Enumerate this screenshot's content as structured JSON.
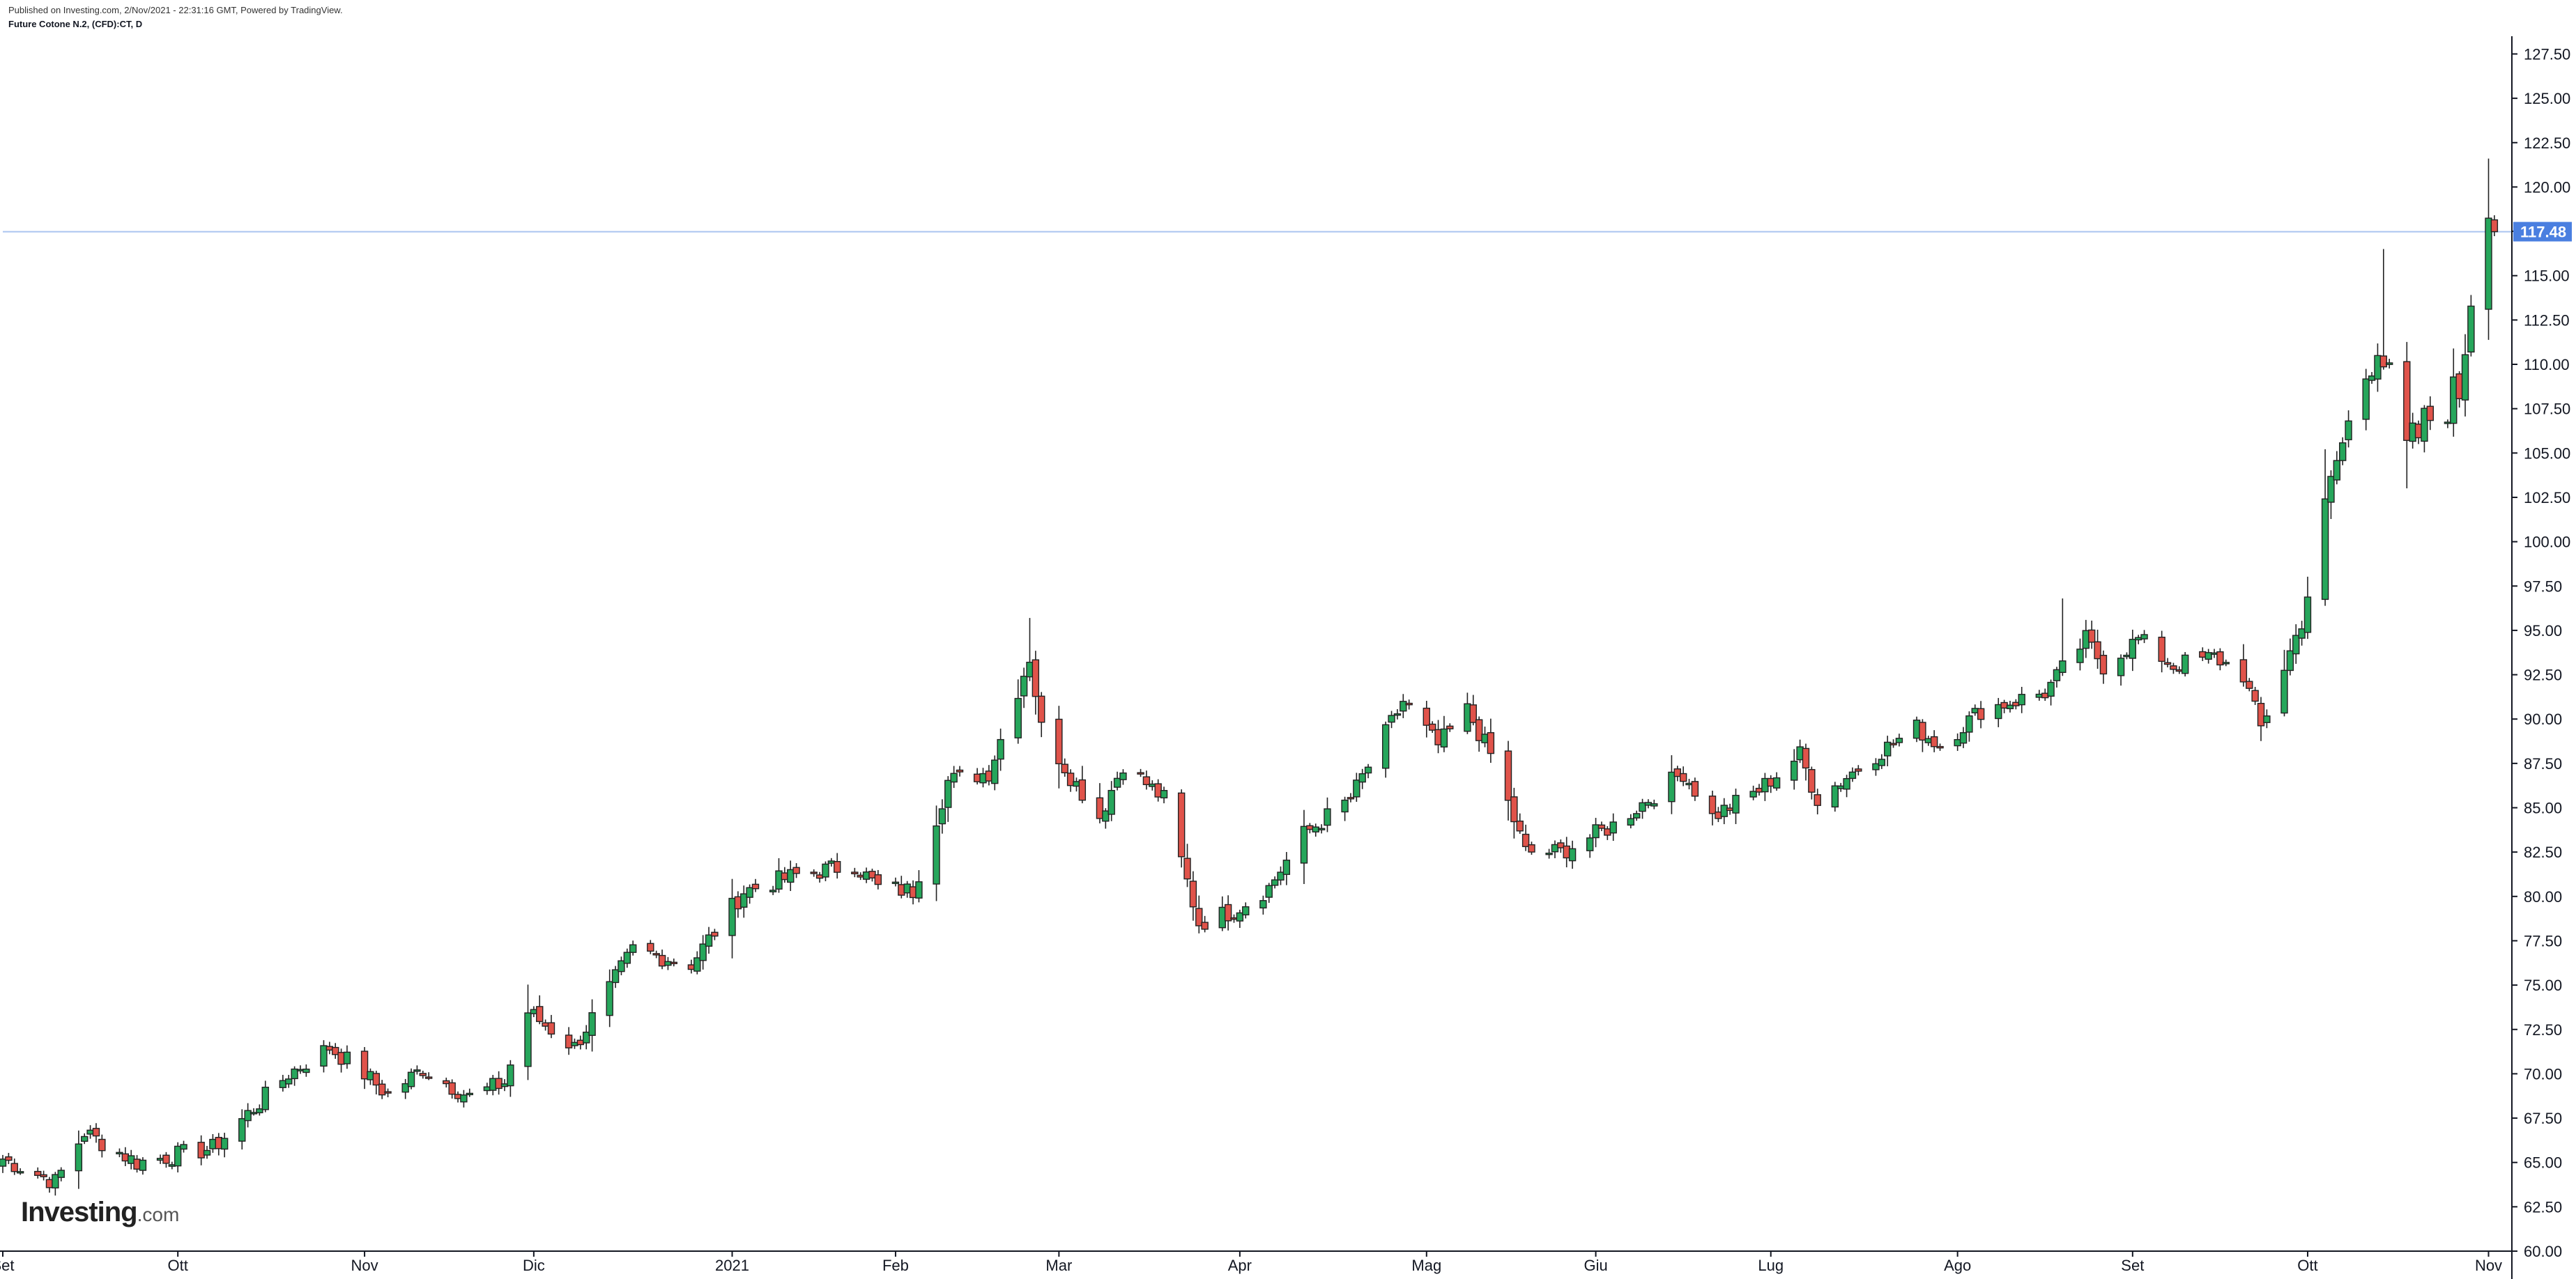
{
  "header": {
    "published": "Published on Investing.com, 2/Nov/2021 - 22:31:16 GMT, Powered by TradingView.",
    "symbol": "Future Cotone N.2, (CFD):CT, D"
  },
  "logo": {
    "brand": "Investing",
    "suffix": ".com"
  },
  "colors": {
    "up": "#26a65b",
    "down": "#e0534a",
    "wick": "#222222",
    "axis": "#131722",
    "price_line": "#aac4f0",
    "price_tag": "#4a7fe0"
  },
  "chart_data": {
    "type": "candlestick",
    "title": "",
    "xlabel": "",
    "ylabel": "",
    "ylim": [
      60.0,
      128.5
    ],
    "last_price": 117.48,
    "last_price_label": "117.48",
    "y_ticks": [
      60.0,
      62.5,
      65.0,
      67.5,
      70.0,
      72.5,
      75.0,
      77.5,
      80.0,
      82.5,
      85.0,
      87.5,
      90.0,
      92.5,
      95.0,
      97.5,
      100.0,
      102.5,
      105.0,
      107.5,
      110.0,
      112.5,
      115.0,
      117.5,
      120.0,
      122.5,
      125.0,
      127.5
    ],
    "y_tick_labels": [
      "60.00",
      "62.50",
      "65.00",
      "67.50",
      "70.00",
      "72.50",
      "75.00",
      "77.50",
      "80.00",
      "82.50",
      "85.00",
      "87.50",
      "90.00",
      "92.50",
      "95.00",
      "97.50",
      "100.00",
      "102.50",
      "105.00",
      "107.50",
      "110.00",
      "112.50",
      "115.00",
      "117.50",
      "120.00",
      "122.50",
      "125.00",
      "127.50"
    ],
    "x_domain": [
      "2020-09-01",
      "2021-11-05"
    ],
    "x_ticks": [
      {
        "date": "2020-09-01",
        "label": "Set"
      },
      {
        "date": "2020-10-01",
        "label": "Ott"
      },
      {
        "date": "2020-11-02",
        "label": "Nov"
      },
      {
        "date": "2020-12-01",
        "label": "Dic"
      },
      {
        "date": "2021-01-04",
        "label": "2021"
      },
      {
        "date": "2021-02-01",
        "label": "Feb"
      },
      {
        "date": "2021-03-01",
        "label": "Mar"
      },
      {
        "date": "2021-04-01",
        "label": "Apr"
      },
      {
        "date": "2021-05-03",
        "label": "Mag"
      },
      {
        "date": "2021-06-01",
        "label": "Giu"
      },
      {
        "date": "2021-07-01",
        "label": "Lug"
      },
      {
        "date": "2021-08-02",
        "label": "Ago"
      },
      {
        "date": "2021-09-01",
        "label": "Set"
      },
      {
        "date": "2021-10-01",
        "label": "Ott"
      },
      {
        "date": "2021-11-01",
        "label": "Nov"
      }
    ],
    "anchors": [
      [
        "2020-09-01",
        65.2
      ],
      [
        "2020-09-10",
        63.9
      ],
      [
        "2020-09-15",
        66.7
      ],
      [
        "2020-09-24",
        65.0
      ],
      [
        "2020-10-07",
        65.8
      ],
      [
        "2020-10-20",
        70.0
      ],
      [
        "2020-10-27",
        71.5
      ],
      [
        "2020-11-02",
        70.0
      ],
      [
        "2020-11-06",
        68.8
      ],
      [
        "2020-11-12",
        70.3
      ],
      [
        "2020-11-20",
        68.7
      ],
      [
        "2020-11-26",
        69.5
      ],
      [
        "2020-11-30",
        73.5
      ],
      [
        "2020-12-08",
        71.5
      ],
      [
        "2020-12-18",
        77.0
      ],
      [
        "2020-12-28",
        76.2
      ],
      [
        "2021-01-06",
        80.3
      ],
      [
        "2021-01-15",
        81.2
      ],
      [
        "2021-01-25",
        81.8
      ],
      [
        "2021-01-29",
        80.5
      ],
      [
        "2021-02-04",
        80.3
      ],
      [
        "2021-02-10",
        86.5
      ],
      [
        "2021-02-17",
        87.0
      ],
      [
        "2021-02-24",
        93.5
      ],
      [
        "2021-02-26",
        89.5
      ],
      [
        "2021-03-03",
        86.8
      ],
      [
        "2021-03-08",
        84.5
      ],
      [
        "2021-03-12",
        87.5
      ],
      [
        "2021-03-19",
        85.5
      ],
      [
        "2021-03-25",
        78.5
      ],
      [
        "2021-03-31",
        79.2
      ],
      [
        "2021-04-06",
        80.5
      ],
      [
        "2021-04-12",
        83.5
      ],
      [
        "2021-04-20",
        85.5
      ],
      [
        "2021-04-29",
        91.0
      ],
      [
        "2021-05-05",
        88.5
      ],
      [
        "2021-05-10",
        90.5
      ],
      [
        "2021-05-14",
        88.0
      ],
      [
        "2021-05-20",
        82.5
      ],
      [
        "2021-05-26",
        82.5
      ],
      [
        "2021-06-04",
        84.0
      ],
      [
        "2021-06-10",
        85.5
      ],
      [
        "2021-06-16",
        87.0
      ],
      [
        "2021-06-21",
        84.5
      ],
      [
        "2021-06-29",
        86.0
      ],
      [
        "2021-07-06",
        88.0
      ],
      [
        "2021-07-09",
        85.5
      ],
      [
        "2021-07-19",
        88.0
      ],
      [
        "2021-07-26",
        89.5
      ],
      [
        "2021-07-30",
        88.5
      ],
      [
        "2021-08-06",
        90.5
      ],
      [
        "2021-08-17",
        91.5
      ],
      [
        "2021-08-24",
        94.5
      ],
      [
        "2021-08-27",
        93.0
      ],
      [
        "2021-09-02",
        94.5
      ],
      [
        "2021-09-08",
        93.0
      ],
      [
        "2021-09-15",
        93.5
      ],
      [
        "2021-09-20",
        92.5
      ],
      [
        "2021-09-23",
        89.5
      ],
      [
        "2021-09-30",
        95.5
      ],
      [
        "2021-10-06",
        104.5
      ],
      [
        "2021-10-13",
        111.5
      ],
      [
        "2021-10-18",
        105.0
      ],
      [
        "2021-10-22",
        107.0
      ],
      [
        "2021-10-27",
        108.5
      ],
      [
        "2021-10-29",
        114.0
      ],
      [
        "2021-11-01",
        119.5
      ],
      [
        "2021-11-02",
        117.48
      ]
    ],
    "wick_highs": [
      [
        "2021-02-24",
        95.7
      ],
      [
        "2021-08-20",
        96.8
      ],
      [
        "2021-10-14",
        116.5
      ],
      [
        "2021-11-01",
        121.6
      ]
    ]
  }
}
